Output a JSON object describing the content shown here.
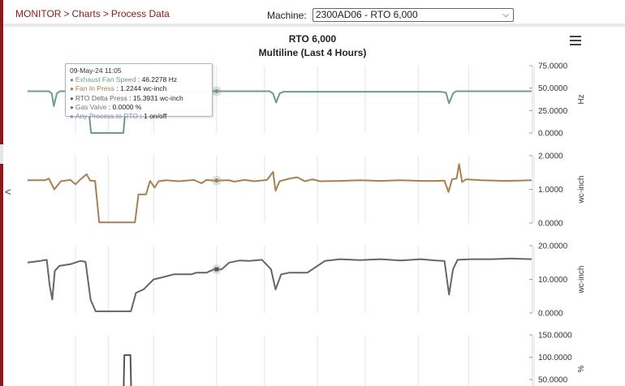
{
  "breadcrumb": {
    "monitor": "MONITOR",
    "charts": "Charts",
    "process_data": "Process Data",
    "separator": ">"
  },
  "machine": {
    "label": "Machine:",
    "selected": "2300AD06 - RTO 6,000"
  },
  "collapse_glyph": "<",
  "menu_icon": "hamburger-menu-icon",
  "tooltip": {
    "time": "09-May-24 11:05",
    "items": [
      {
        "name": "Exhaust Fan Speed",
        "value": "46.2278 Hz",
        "color": "#6b9e85"
      },
      {
        "name": "Fan In Press",
        "value": "1.2244 wc-inch",
        "color": "#a88050"
      },
      {
        "name": "RTO Delta Press",
        "value": "15.3931 wc-inch",
        "color": "#666666"
      },
      {
        "name": "Gas Valve",
        "value": "0.0000 %",
        "color": "#777777"
      },
      {
        "name": "Any Process to RTO",
        "value": "1 on/off",
        "color": "#8a8ab8"
      }
    ]
  },
  "chart_data": {
    "type": "line",
    "title": "RTO 6,000",
    "subtitle": "Multiline (Last 4 Hours)",
    "x_range": [
      0,
      100
    ],
    "panels": [
      {
        "series_name": "Exhaust Fan Speed",
        "color": "#6b9e85",
        "unit": "Hz",
        "yticks": [
          "75.0000",
          "50.0000",
          "25.0000",
          "0.0000"
        ],
        "ylim": [
          0,
          75
        ],
        "points": [
          [
            0,
            46.5
          ],
          [
            4.2,
            46.5
          ],
          [
            4.8,
            44
          ],
          [
            5.2,
            30
          ],
          [
            5.8,
            44
          ],
          [
            6.4,
            46.5
          ],
          [
            11,
            46.5
          ],
          [
            11.8,
            45
          ],
          [
            12.6,
            0
          ],
          [
            19,
            0
          ],
          [
            19.7,
            45
          ],
          [
            20.6,
            46.5
          ],
          [
            40,
            46.5
          ],
          [
            44,
            46.5
          ],
          [
            48,
            46.5
          ],
          [
            48.7,
            44
          ],
          [
            49.3,
            34
          ],
          [
            50,
            44
          ],
          [
            50.8,
            46
          ],
          [
            75,
            46
          ],
          [
            82,
            46
          ],
          [
            83,
            45
          ],
          [
            83.6,
            33
          ],
          [
            84.4,
            44
          ],
          [
            85,
            46.5
          ],
          [
            100,
            46.5
          ]
        ]
      },
      {
        "series_name": "Fan In Press",
        "color": "#a88050",
        "unit": "wc-inch",
        "yticks": [
          "2.0000",
          "1.0000",
          "0.0000"
        ],
        "ylim": [
          0,
          2
        ],
        "points": [
          [
            0,
            1.27
          ],
          [
            3.5,
            1.27
          ],
          [
            4.2,
            1.32
          ],
          [
            5.3,
            1.0
          ],
          [
            6.6,
            1.24
          ],
          [
            8.5,
            1.28
          ],
          [
            9.5,
            1.15
          ],
          [
            10.5,
            1.3
          ],
          [
            11.7,
            1.45
          ],
          [
            12.4,
            1.26
          ],
          [
            13.4,
            1.25
          ],
          [
            14.2,
            0.02
          ],
          [
            21.3,
            0.02
          ],
          [
            22,
            0.85
          ],
          [
            23.5,
            0.85
          ],
          [
            24.3,
            1.25
          ],
          [
            25.2,
            1.05
          ],
          [
            26,
            1.24
          ],
          [
            27.5,
            1.27
          ],
          [
            30,
            1.24
          ],
          [
            33,
            1.28
          ],
          [
            34.5,
            1.18
          ],
          [
            35.5,
            1.28
          ],
          [
            37,
            1.26
          ],
          [
            40,
            1.27
          ],
          [
            41,
            1.23
          ],
          [
            43,
            1.28
          ],
          [
            45,
            1.24
          ],
          [
            47.5,
            1.28
          ],
          [
            48.7,
            1.52
          ],
          [
            49.2,
            0.96
          ],
          [
            50,
            1.24
          ],
          [
            52,
            1.32
          ],
          [
            53.5,
            1.36
          ],
          [
            55,
            1.24
          ],
          [
            56.5,
            1.3
          ],
          [
            58,
            1.24
          ],
          [
            62,
            1.25
          ],
          [
            66,
            1.27
          ],
          [
            70,
            1.25
          ],
          [
            74,
            1.27
          ],
          [
            78,
            1.25
          ],
          [
            81,
            1.25
          ],
          [
            82.7,
            1.26
          ],
          [
            83.5,
            0.92
          ],
          [
            84.2,
            1.3
          ],
          [
            85.1,
            1.32
          ],
          [
            85.6,
            1.75
          ],
          [
            86.2,
            1.22
          ],
          [
            87,
            1.3
          ],
          [
            90,
            1.27
          ],
          [
            95,
            1.25
          ],
          [
            100,
            1.27
          ]
        ]
      },
      {
        "series_name": "RTO Delta Press",
        "color": "#666666",
        "unit": "wc-inch",
        "yticks": [
          "20.0000",
          "10.0000",
          "0.0000"
        ],
        "ylim": [
          0,
          20
        ],
        "points": [
          [
            0,
            15
          ],
          [
            2.5,
            15.5
          ],
          [
            3.8,
            15.8
          ],
          [
            4.4,
            8
          ],
          [
            4.9,
            4
          ],
          [
            5.4,
            12.5
          ],
          [
            6.3,
            14
          ],
          [
            8.5,
            14.5
          ],
          [
            10.5,
            15.5
          ],
          [
            11.5,
            15.2
          ],
          [
            12.5,
            4
          ],
          [
            13.5,
            0.5
          ],
          [
            20.5,
            0.5
          ],
          [
            21.5,
            6
          ],
          [
            23,
            7
          ],
          [
            25,
            10
          ],
          [
            26.5,
            10.5
          ],
          [
            29,
            11.5
          ],
          [
            31,
            11.5
          ],
          [
            32.5,
            11.5
          ],
          [
            33.5,
            12
          ],
          [
            35.5,
            12
          ],
          [
            37,
            13
          ],
          [
            38.5,
            13
          ],
          [
            40,
            15
          ],
          [
            42,
            15.6
          ],
          [
            44,
            15.5
          ],
          [
            46.5,
            15.8
          ],
          [
            48.3,
            13
          ],
          [
            49.2,
            7
          ],
          [
            50.3,
            11.5
          ],
          [
            52,
            12
          ],
          [
            55.5,
            12
          ],
          [
            57,
            13.5
          ],
          [
            59,
            15.5
          ],
          [
            62,
            16
          ],
          [
            66,
            15.7
          ],
          [
            70,
            16
          ],
          [
            74,
            15.6
          ],
          [
            78,
            16
          ],
          [
            81,
            15.6
          ],
          [
            82.7,
            15.5
          ],
          [
            83.6,
            5.5
          ],
          [
            84.4,
            13
          ],
          [
            85.3,
            15.8
          ],
          [
            88,
            16
          ],
          [
            92,
            16
          ],
          [
            96,
            16.2
          ],
          [
            100,
            16
          ]
        ]
      },
      {
        "series_name": "Gas Valve",
        "color": "#555555",
        "unit": "%",
        "yticks": [
          "150.0000",
          "100.0000",
          "50.0000"
        ],
        "ylim": [
          0,
          150
        ],
        "points": [
          [
            19,
            0
          ],
          [
            19.2,
            105
          ],
          [
            20.4,
            105
          ],
          [
            20.6,
            0
          ]
        ]
      }
    ],
    "crosshair_x": 37.5,
    "grid": "vertical"
  }
}
